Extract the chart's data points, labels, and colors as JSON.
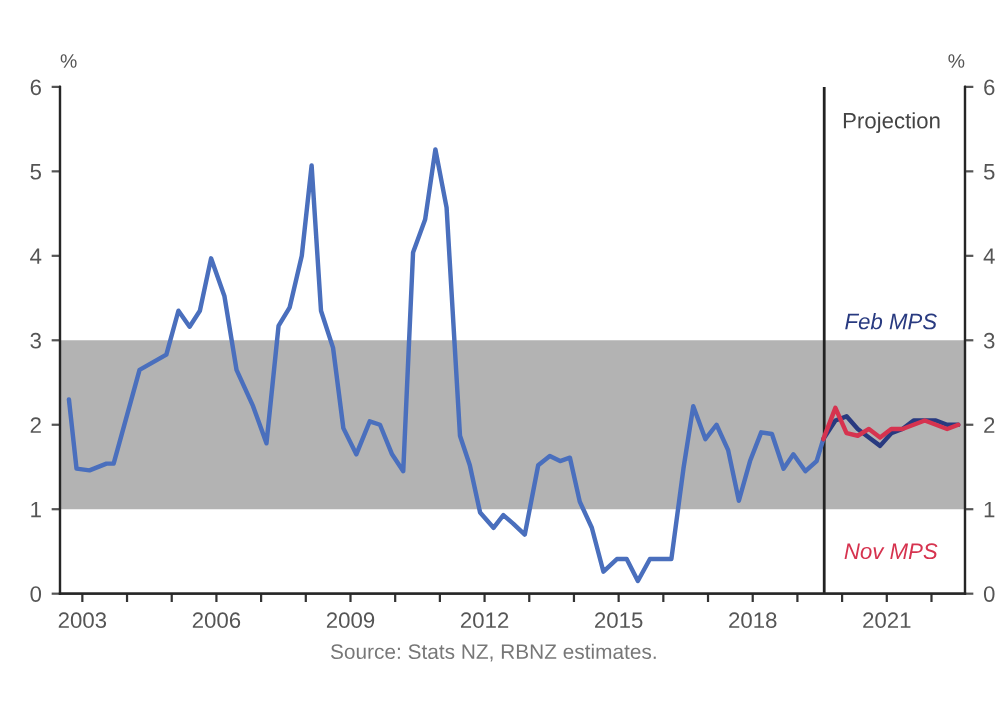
{
  "chart_data": {
    "type": "line",
    "ylabel": "%",
    "y2label": "%",
    "xlim": [
      2002.5,
      2022.75
    ],
    "ylim": [
      0,
      6
    ],
    "y2lim": [
      0,
      6
    ],
    "yticks": [
      0,
      1,
      2,
      3,
      4,
      5,
      6
    ],
    "y2ticks": [
      0,
      1,
      2,
      3,
      4,
      5,
      6
    ],
    "xticks": [
      2003,
      {
        "value": 2004,
        "label": null
      },
      {
        "value": 2005,
        "label": null
      },
      2006,
      {
        "value": 2007,
        "label": null
      },
      {
        "value": 2008,
        "label": null
      },
      2009,
      {
        "value": 2010,
        "label": null
      },
      {
        "value": 2011,
        "label": null
      },
      2012,
      {
        "value": 2013,
        "label": null
      },
      {
        "value": 2014,
        "label": null
      },
      2015,
      {
        "value": 2016,
        "label": null
      },
      {
        "value": 2017,
        "label": null
      },
      2018,
      {
        "value": 2019,
        "label": null
      },
      {
        "value": 2020,
        "label": null
      },
      2021,
      {
        "value": 2022,
        "label": null
      }
    ],
    "grid": false,
    "legend": false,
    "marker": "none",
    "line_style": "solid",
    "bands": [
      {
        "axis": "y",
        "from": 1,
        "to": 3,
        "color": "#b3b3b3"
      }
    ],
    "ref_lines": [
      {
        "axis": "x",
        "value": 2019.6,
        "label": "Projection",
        "color": "#222222"
      }
    ],
    "annotations": [
      "Source: Stats NZ, RBNZ estimates."
    ],
    "series": [
      {
        "color": "#4a6fbd",
        "x": [
          2002.7,
          2002.87,
          2003.16,
          2003.54,
          2003.7,
          2004.28,
          2004.88,
          2005.15,
          2005.4,
          2005.63,
          2005.88,
          2006.18,
          2006.45,
          2006.82,
          2007.12,
          2007.39,
          2007.64,
          2007.91,
          2008.13,
          2008.34,
          2008.61,
          2008.84,
          2009.13,
          2009.43,
          2009.66,
          2009.93,
          2010.18,
          2010.4,
          2010.67,
          2010.9,
          2011.15,
          2011.45,
          2011.67,
          2011.9,
          2012.2,
          2012.42,
          2012.64,
          2012.9,
          2013.2,
          2013.46,
          2013.69,
          2013.91,
          2014.13,
          2014.4,
          2014.66,
          2014.96,
          2015.18,
          2015.43,
          2015.7,
          2015.93,
          2016.18,
          2016.45,
          2016.67,
          2016.94,
          2017.19,
          2017.45,
          2017.69,
          2017.94,
          2018.19,
          2018.43,
          2018.69,
          2018.91,
          2019.18,
          2019.43,
          2019.58
        ],
        "values": [
          2.3,
          1.48,
          1.46,
          1.54,
          1.54,
          2.65,
          2.83,
          3.35,
          3.16,
          3.35,
          3.97,
          3.52,
          2.65,
          2.22,
          1.78,
          3.17,
          3.39,
          4.0,
          5.07,
          3.35,
          2.91,
          1.96,
          1.65,
          2.04,
          2.0,
          1.65,
          1.45,
          4.04,
          4.43,
          5.26,
          4.57,
          1.87,
          1.52,
          0.96,
          0.78,
          0.93,
          0.83,
          0.7,
          1.52,
          1.63,
          1.57,
          1.61,
          1.09,
          0.78,
          0.26,
          0.41,
          0.41,
          0.15,
          0.41,
          0.41,
          0.41,
          1.48,
          2.22,
          1.83,
          2.0,
          1.7,
          1.1,
          1.57,
          1.91,
          1.89,
          1.48,
          1.65,
          1.45,
          1.57,
          1.83
        ]
      },
      {
        "name": "Feb MPS",
        "color": "#283a80",
        "x": [
          2019.58,
          2019.85,
          2020.1,
          2020.35,
          2020.6,
          2020.85,
          2021.1,
          2021.35,
          2021.6,
          2021.85,
          2022.1,
          2022.35,
          2022.6
        ],
        "values": [
          1.83,
          2.05,
          2.1,
          1.95,
          1.85,
          1.75,
          1.9,
          1.95,
          2.05,
          2.05,
          2.05,
          2.0,
          2.0
        ]
      },
      {
        "name": "Nov MPS",
        "color": "#d6334f",
        "x": [
          2019.58,
          2019.85,
          2020.1,
          2020.35,
          2020.6,
          2020.85,
          2021.1,
          2021.35,
          2021.6,
          2021.85,
          2022.1,
          2022.35,
          2022.6
        ],
        "values": [
          1.83,
          2.2,
          1.9,
          1.87,
          1.95,
          1.85,
          1.95,
          1.95,
          2.0,
          2.05,
          2.0,
          1.95,
          2.0
        ]
      }
    ]
  }
}
